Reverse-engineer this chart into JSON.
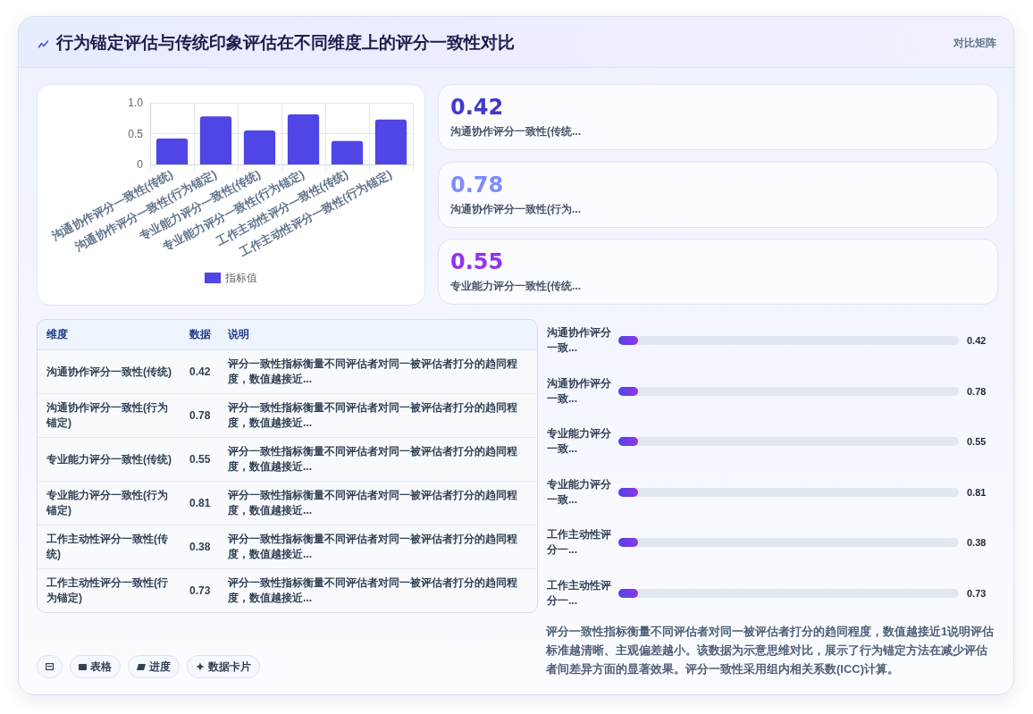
{
  "chart_data": [
    {
      "type": "bar",
      "title": "行为锚定评估与传统印象评估在不同维度上的评分一致性对比",
      "categories": [
        "沟通协作评分一致性(传统)",
        "沟通协作评分一致性(行为锚定)",
        "专业能力评分一致性(传统)",
        "专业能力评分一致性(行为锚定)",
        "工作主动性评分一致性(传统)",
        "工作主动性评分一致性(行为锚定)"
      ],
      "series": [
        {
          "name": "指标值",
          "color": "#4f46e5",
          "values": [
            0.42,
            0.78,
            0.55,
            0.81,
            0.38,
            0.73
          ]
        }
      ],
      "ylim": [
        0,
        1
      ],
      "yticks": [
        0,
        0.5,
        {
          "value": 1,
          "label": "1.0"
        }
      ],
      "grid": true,
      "legend": "bottom",
      "annotations": [
        "表格",
        "进度",
        "数据卡片"
      ]
    },
    {
      "type": "other",
      "subtitle": "对比矩阵",
      "categories": [
        "沟通协作评分一致性(传统...",
        "沟通协作评分一致性(行为...",
        "专业能力评分一致性(传统..."
      ],
      "values": [
        0.42,
        0.78,
        0.55
      ],
      "data_labels": true
    },
    {
      "type": "other",
      "categories": [
        "沟通协作评分一致性(传统)",
        "沟通协作评分一致性(行为锚定)",
        "专业能力评分一致性(传统)",
        "专业能力评分一致性(行为锚定)",
        "工作主动性评分一致性(传统)",
        "工作主动性评分一致性(行为锚定)"
      ],
      "values": [
        0.42,
        0.78,
        0.55,
        0.81,
        0.38,
        0.73
      ],
      "data_labels": true,
      "annotations": [
        "维度",
        "数据",
        "说明",
        "评分一致性指标衡量不同评估者对同一被评估者打分的趋同程度，数值越接近...",
        "评分一致性指标衡量不同评估者对同一被评估者打分的趋同程度，数值越接近...",
        "评分一致性指标衡量不同评估者对同一被评估者打分的趋同程度，数值越接近...",
        "评分一致性指标衡量不同评估者对同一被评估者打分的趋同程度，数值越接近...",
        "评分一致性指标衡量不同评估者对同一被评估者打分的趋同程度，数值越接近...",
        "评分一致性指标衡量不同评估者对同一被评估者打分的趋同程度，数值越接近..."
      ]
    },
    {
      "type": "other",
      "categories": [
        "沟通协作评分一致...",
        "沟通协作评分一致...",
        "专业能力评分一致...",
        "专业能力评分一致...",
        "工作主动性评分一...",
        "工作主动性评分一..."
      ],
      "values": [
        0.42,
        0.78,
        0.55,
        0.81,
        0.38,
        0.73
      ],
      "data_labels": true,
      "annotations": [
        "评分一致性指标衡量不同评估者对同一被评估者打分的趋同程度，数值越接近1说明评估标准越清晰、主观偏差越小。该数据为示意思维对比，展示了行为锚定方法在减少评估者间差异方面的显著效果。评分一致性采用组内相关系数(ICC)计算。"
      ]
    }
  ]
}
